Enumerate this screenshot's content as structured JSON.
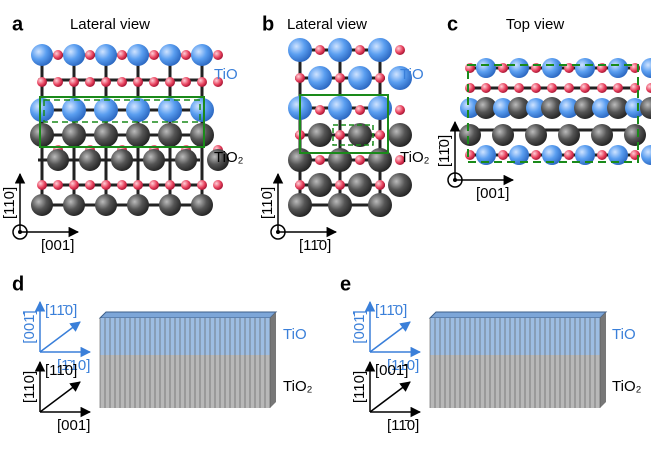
{
  "panels": [
    {
      "label": "a",
      "title": "Lateral view",
      "top_label": "TiO",
      "bottom_label": "TiO₂",
      "axis_vertical": "[110]",
      "axis_horizontal": "[001]"
    },
    {
      "label": "b",
      "title": "Lateral view",
      "top_label": "TiO",
      "bottom_label": "TiO₂",
      "axis_vertical": "[110]",
      "axis_horizontal": "[11̄0]"
    },
    {
      "label": "c",
      "title": "Top view",
      "axis_vertical": "[11̄0]",
      "axis_horizontal": "[001]"
    },
    {
      "label": "d",
      "top_label": "TiO",
      "bottom_label": "TiO₂",
      "blue_axis_vertical": "[001̄]",
      "blue_axis_diagonal": "[11̄0]",
      "blue_axis_horizontal": "[1̄10]",
      "axis_vertical": "[110]",
      "axis_diagonal": "[11̄0]",
      "axis_horizontal": "[001]"
    },
    {
      "label": "e",
      "top_label": "TiO",
      "bottom_label": "TiO₂",
      "blue_axis_vertical": "[001̄]",
      "blue_axis_diagonal": "[11̄0]",
      "blue_axis_horizontal": "[110]",
      "axis_vertical": "[110]",
      "axis_diagonal": "[001̄]",
      "axis_horizontal": "[11̄0]"
    }
  ]
}
